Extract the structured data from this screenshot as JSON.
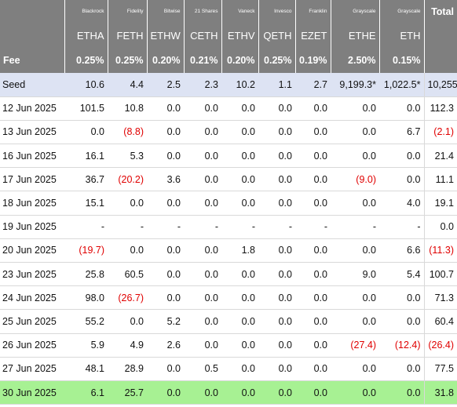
{
  "header": {
    "total_label": "Total",
    "fee_label": "Fee",
    "funds": [
      {
        "issuer": "Blackrock",
        "ticker": "ETHA",
        "fee": "0.25%"
      },
      {
        "issuer": "Fidelity",
        "ticker": "FETH",
        "fee": "0.25%"
      },
      {
        "issuer": "Bitwise",
        "ticker": "ETHW",
        "fee": "0.20%"
      },
      {
        "issuer": "21 Shares",
        "ticker": "CETH",
        "fee": "0.21%"
      },
      {
        "issuer": "Vaneck",
        "ticker": "ETHV",
        "fee": "0.20%"
      },
      {
        "issuer": "Invesco",
        "ticker": "QETH",
        "fee": "0.25%"
      },
      {
        "issuer": "Franklin",
        "ticker": "EZET",
        "fee": "0.19%"
      },
      {
        "issuer": "Grayscale",
        "ticker": "ETHE",
        "fee": "2.50%"
      },
      {
        "issuer": "Grayscale",
        "ticker": "ETH",
        "fee": "0.15%"
      }
    ]
  },
  "rows": [
    {
      "label": "Seed",
      "values": [
        "10.6",
        "4.4",
        "2.5",
        "2.3",
        "10.2",
        "1.1",
        "2.7",
        "9,199.3*",
        "1,022.5*"
      ],
      "total": "10,255"
    },
    {
      "label": "12 Jun 2025",
      "values": [
        "101.5",
        "10.8",
        "0.0",
        "0.0",
        "0.0",
        "0.0",
        "0.0",
        "0.0",
        "0.0"
      ],
      "total": "112.3"
    },
    {
      "label": "13 Jun 2025",
      "values": [
        "0.0",
        "(8.8)",
        "0.0",
        "0.0",
        "0.0",
        "0.0",
        "0.0",
        "0.0",
        "6.7"
      ],
      "total": "(2.1)"
    },
    {
      "label": "16 Jun 2025",
      "values": [
        "16.1",
        "5.3",
        "0.0",
        "0.0",
        "0.0",
        "0.0",
        "0.0",
        "0.0",
        "0.0"
      ],
      "total": "21.4"
    },
    {
      "label": "17 Jun 2025",
      "values": [
        "36.7",
        "(20.2)",
        "3.6",
        "0.0",
        "0.0",
        "0.0",
        "0.0",
        "(9.0)",
        "0.0"
      ],
      "total": "11.1"
    },
    {
      "label": "18 Jun 2025",
      "values": [
        "15.1",
        "0.0",
        "0.0",
        "0.0",
        "0.0",
        "0.0",
        "0.0",
        "0.0",
        "4.0"
      ],
      "total": "19.1"
    },
    {
      "label": "19 Jun 2025",
      "values": [
        "-",
        "-",
        "-",
        "-",
        "-",
        "-",
        "-",
        "-",
        "-"
      ],
      "total": "0.0"
    },
    {
      "label": "20 Jun 2025",
      "values": [
        "(19.7)",
        "0.0",
        "0.0",
        "0.0",
        "1.8",
        "0.0",
        "0.0",
        "0.0",
        "6.6"
      ],
      "total": "(11.3)"
    },
    {
      "label": "23 Jun 2025",
      "values": [
        "25.8",
        "60.5",
        "0.0",
        "0.0",
        "0.0",
        "0.0",
        "0.0",
        "9.0",
        "5.4"
      ],
      "total": "100.7"
    },
    {
      "label": "24 Jun 2025",
      "values": [
        "98.0",
        "(26.7)",
        "0.0",
        "0.0",
        "0.0",
        "0.0",
        "0.0",
        "0.0",
        "0.0"
      ],
      "total": "71.3"
    },
    {
      "label": "25 Jun 2025",
      "values": [
        "55.2",
        "0.0",
        "5.2",
        "0.0",
        "0.0",
        "0.0",
        "0.0",
        "0.0",
        "0.0"
      ],
      "total": "60.4"
    },
    {
      "label": "26 Jun 2025",
      "values": [
        "5.9",
        "4.9",
        "2.6",
        "0.0",
        "0.0",
        "0.0",
        "0.0",
        "(27.4)",
        "(12.4)"
      ],
      "total": "(26.4)"
    },
    {
      "label": "27 Jun 2025",
      "values": [
        "48.1",
        "28.9",
        "0.0",
        "0.5",
        "0.0",
        "0.0",
        "0.0",
        "0.0",
        "0.0"
      ],
      "total": "77.5"
    },
    {
      "label": "30 Jun 2025",
      "values": [
        "6.1",
        "25.7",
        "0.0",
        "0.0",
        "0.0",
        "0.0",
        "0.0",
        "0.0",
        "0.0"
      ],
      "total": "31.8"
    }
  ],
  "colors": {
    "header_bg": "#7f7f7f",
    "seed_row_bg": "#dde3f3",
    "highlight_row_bg": "#a7f193",
    "negative_text": "#e00000"
  }
}
